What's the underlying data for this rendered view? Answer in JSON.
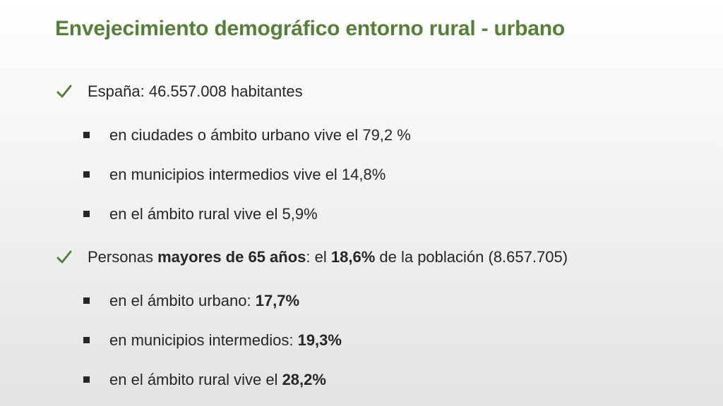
{
  "slide": {
    "title": "Envejecimiento demográfico entorno rural - urbano",
    "bullets": [
      {
        "icon": "checkmark-icon",
        "parts": [
          {
            "text": "España: 46.557.008 habitantes",
            "bold": false
          }
        ],
        "sub_items": [
          {
            "icon": "square-bullet-icon",
            "parts": [
              {
                "text": "en ciudades o ámbito urbano vive el 79,2 %",
                "bold": false
              }
            ]
          },
          {
            "icon": "square-bullet-icon",
            "parts": [
              {
                "text": "en municipios intermedios vive el 14,8%",
                "bold": false
              }
            ]
          },
          {
            "icon": "square-bullet-icon",
            "parts": [
              {
                "text": "en el ámbito rural vive el 5,9%",
                "bold": false
              }
            ]
          }
        ]
      },
      {
        "icon": "checkmark-icon",
        "parts": [
          {
            "text": "Personas ",
            "bold": false
          },
          {
            "text": "mayores de 65 años",
            "bold": true
          },
          {
            "text": ": el ",
            "bold": false
          },
          {
            "text": "18,6%",
            "bold": true
          },
          {
            "text": " de la población (8.657.705)",
            "bold": false
          }
        ],
        "sub_items": [
          {
            "icon": "square-bullet-icon",
            "parts": [
              {
                "text": "en el ámbito urbano: ",
                "bold": false
              },
              {
                "text": "17,7%",
                "bold": true
              }
            ]
          },
          {
            "icon": "square-bullet-icon",
            "parts": [
              {
                "text": "en municipios intermedios: ",
                "bold": false
              },
              {
                "text": "19,3%",
                "bold": true
              }
            ]
          },
          {
            "icon": "square-bullet-icon",
            "parts": [
              {
                "text": "en el ámbito rural vive el ",
                "bold": false
              },
              {
                "text": "28,2%",
                "bold": true
              }
            ]
          }
        ]
      }
    ]
  },
  "colors": {
    "title": "#538135",
    "check": "#538135",
    "text": "#262626"
  }
}
